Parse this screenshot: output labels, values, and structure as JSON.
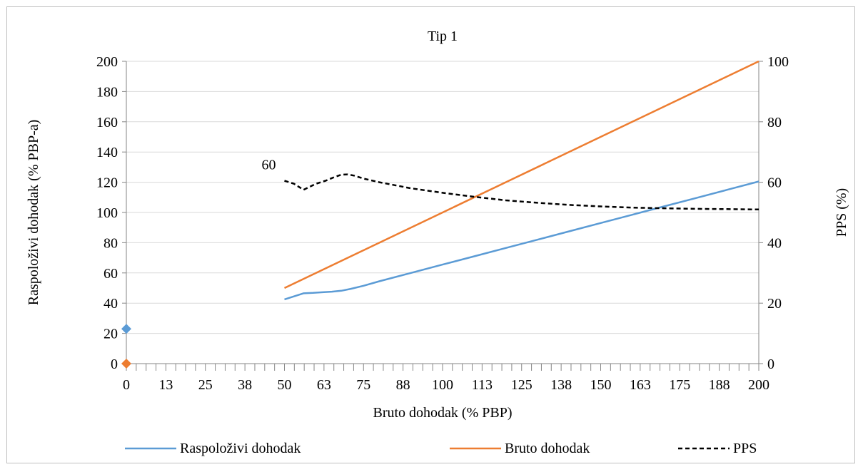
{
  "chart_data": {
    "type": "line",
    "title": "Tip 1",
    "xlabel": "Bruto dohodak (% PBP)",
    "ylabel_left": "Raspoloživi dohodak (% PBP-a)",
    "ylabel_right": "PPS (%)",
    "xlim": [
      0,
      200
    ],
    "ylim_left": [
      0,
      200
    ],
    "ylim_right": [
      0,
      100
    ],
    "x_ticks": [
      "0",
      "13",
      "25",
      "38",
      "50",
      "63",
      "75",
      "88",
      "100",
      "113",
      "125",
      "138",
      "150",
      "163",
      "175",
      "188",
      "200"
    ],
    "y_ticks_left": [
      "0",
      "20",
      "40",
      "60",
      "80",
      "100",
      "120",
      "140",
      "160",
      "180",
      "200"
    ],
    "y_ticks_right": [
      "0",
      "20",
      "40",
      "60",
      "80",
      "100"
    ],
    "grid": "horizontal",
    "legend_position": "bottom",
    "series": [
      {
        "name": "Raspoloživi dohodak",
        "axis": "left",
        "color": "#5b9bd5",
        "style": "solid",
        "x": [
          50,
          53,
          56,
          59,
          62,
          65,
          68,
          71,
          75,
          80,
          90,
          100,
          110,
          120,
          130,
          140,
          150,
          160,
          170,
          180,
          190,
          200
        ],
        "y": [
          42.5,
          44.5,
          46.5,
          46.8,
          47.2,
          47.6,
          48.2,
          49.5,
          51.5,
          54.5,
          60,
          65.5,
          71,
          76.5,
          82,
          87.5,
          93,
          98.5,
          104,
          109.5,
          115,
          120.5
        ]
      },
      {
        "name": "Bruto dohodak",
        "axis": "left",
        "color": "#ed7d31",
        "style": "solid",
        "x": [
          50,
          200
        ],
        "y": [
          50,
          200
        ]
      },
      {
        "name": "PPS",
        "axis": "right",
        "color": "#000000",
        "style": "dashed",
        "x": [
          50,
          53,
          56,
          58,
          60,
          63,
          66,
          68,
          70,
          72,
          75,
          80,
          90,
          100,
          110,
          120,
          130,
          140,
          150,
          160,
          170,
          180,
          190,
          200
        ],
        "y": [
          60.5,
          59.5,
          57.5,
          58.5,
          59.5,
          60.5,
          61.8,
          62.5,
          62.6,
          62.2,
          61.2,
          60,
          58,
          56.5,
          55.2,
          54,
          53.2,
          52.5,
          52,
          51.6,
          51.4,
          51.2,
          51.1,
          51
        ]
      }
    ],
    "markers": [
      {
        "series": "Raspoloživi dohodak",
        "x": 0,
        "y": 23,
        "axis": "left",
        "shape": "diamond",
        "color": "#5b9bd5"
      },
      {
        "series": "Bruto dohodak",
        "x": 0,
        "y": 0,
        "axis": "left",
        "shape": "diamond",
        "color": "#ed7d31"
      }
    ],
    "annotations": [
      {
        "text": "60",
        "series": "PPS",
        "x": 50,
        "y": 60.5
      }
    ]
  }
}
